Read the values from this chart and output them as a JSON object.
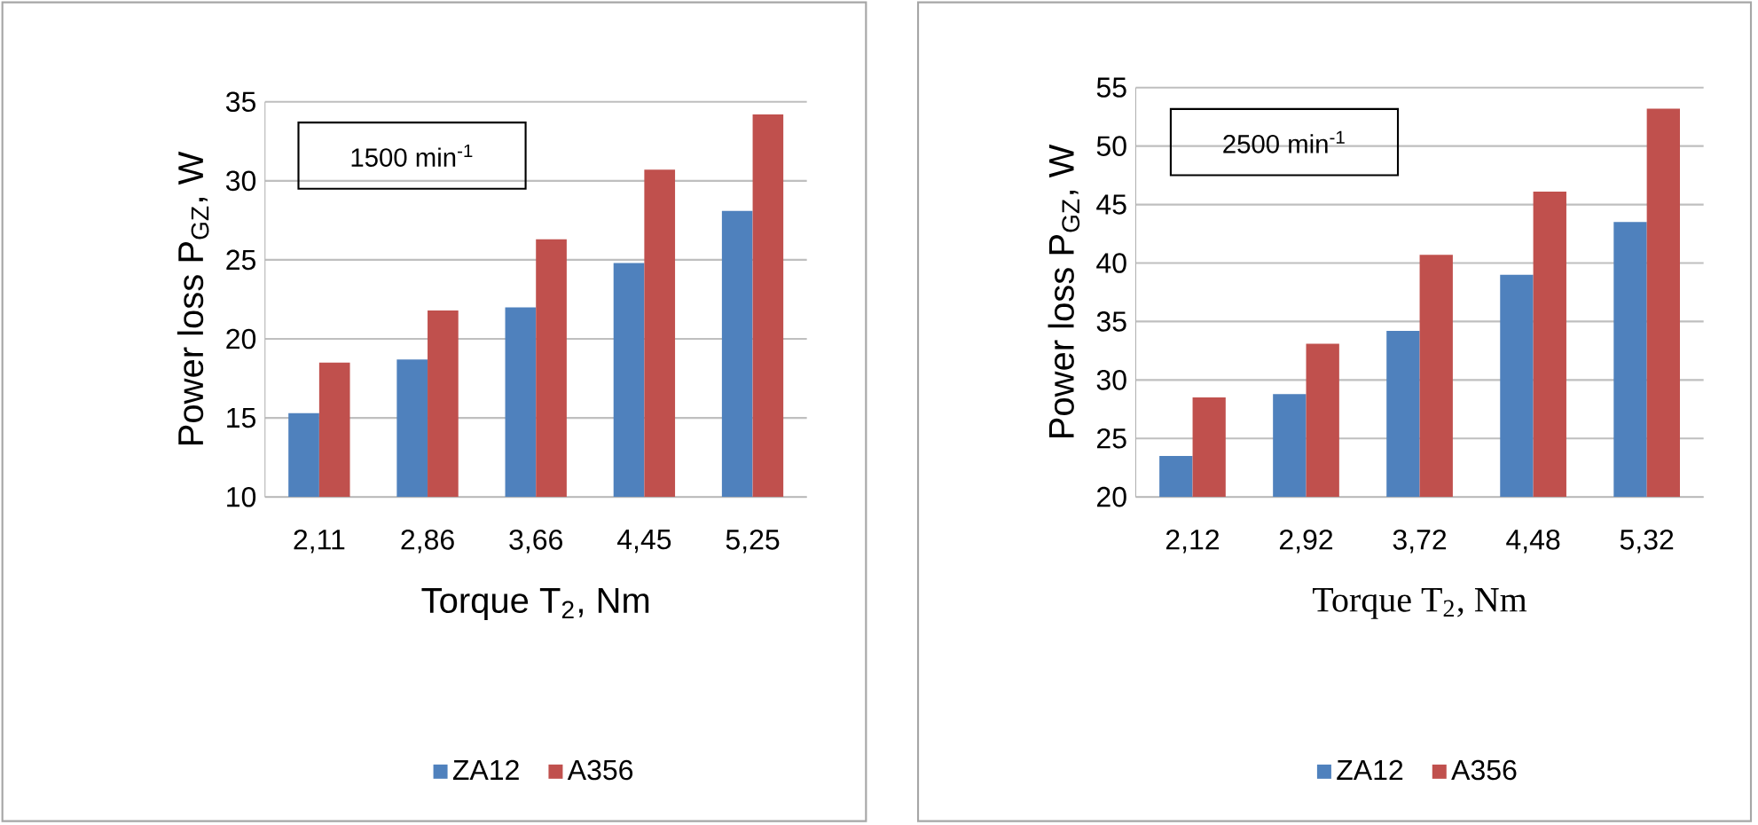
{
  "chart_data": [
    {
      "type": "bar",
      "categories": [
        "2,11",
        "2,86",
        "3,66",
        "4,45",
        "5,25"
      ],
      "ylabel": "Power loss P$_{GZ}$, W",
      "xlabel": "Torque T$_{2}$, Nm",
      "annotations": [
        "1500 min$^{-1}$"
      ],
      "ylim": [
        10,
        35
      ],
      "yticks": [
        10,
        15,
        20,
        25,
        30,
        35
      ],
      "grid": "y",
      "legend": "bottom",
      "series": [
        {
          "name": "ZA12",
          "color": "#4f81bd",
          "values": [
            15.3,
            18.7,
            22.0,
            24.8,
            28.1
          ]
        },
        {
          "name": "A356",
          "color": "#c0504d",
          "values": [
            18.5,
            21.8,
            26.3,
            30.7,
            34.2
          ]
        }
      ]
    },
    {
      "type": "bar",
      "categories": [
        "2,12",
        "2,92",
        "3,72",
        "4,48",
        "5,32"
      ],
      "ylabel": "Power loss P$_{GZ}$, W",
      "xlabel": "Torque T$_{2}$, Nm",
      "annotations": [
        "2500 min$^{-1}$"
      ],
      "ylim": [
        20,
        55
      ],
      "yticks": [
        20,
        25,
        30,
        35,
        40,
        45,
        50,
        55
      ],
      "grid": "y",
      "legend": "bottom",
      "series": [
        {
          "name": "ZA12",
          "color": "#4f81bd",
          "values": [
            23.5,
            28.8,
            34.2,
            39.0,
            43.5
          ]
        },
        {
          "name": "A356",
          "color": "#c0504d",
          "values": [
            28.5,
            33.1,
            40.7,
            46.1,
            53.2
          ]
        }
      ]
    }
  ]
}
